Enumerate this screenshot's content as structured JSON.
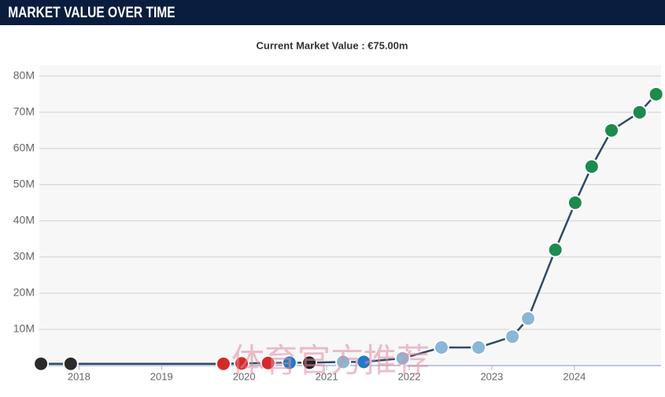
{
  "header": {
    "title": "MARKET VALUE OVER TIME"
  },
  "chart_data": {
    "type": "line",
    "subtitle": "Current Market Value : €75.00m",
    "x": [
      2017.54,
      2017.9,
      2019.75,
      2019.97,
      2020.29,
      2020.55,
      2020.79,
      2021.2,
      2021.45,
      2021.92,
      2022.39,
      2022.84,
      2023.25,
      2023.44,
      2023.77,
      2024.01,
      2024.21,
      2024.45,
      2024.79,
      2024.99
    ],
    "series": [
      {
        "color": "#2f4a66",
        "values": [
          0.5,
          0.5,
          0.5,
          0.6,
          0.7,
          0.8,
          0.8,
          1,
          1,
          2,
          5,
          5,
          8,
          13,
          32,
          45,
          55,
          65,
          70,
          75
        ],
        "marker_colors": [
          "#2b2b2b",
          "#2b2b2b",
          "#d62a2a",
          "#d62a2a",
          "#d62a2a",
          "#1f7ac8",
          "#222222",
          "#8ab6d8",
          "#1f7ac8",
          "#8ab6d8",
          "#8ab6d8",
          "#8ab6d8",
          "#8ab6d8",
          "#8ab6d8",
          "#1d8a4e",
          "#1d8a4e",
          "#1d8a4e",
          "#1d8a4e",
          "#1d8a4e",
          "#1d8a4e"
        ]
      }
    ],
    "xlim": [
      2017.52,
      2025.05
    ],
    "xticks": [
      2018,
      2019,
      2020,
      2021,
      2022,
      2023,
      2024
    ],
    "ylim": [
      0,
      83
    ],
    "yticks": [
      {
        "value": 10,
        "label": "10M"
      },
      {
        "value": 20,
        "label": "20M"
      },
      {
        "value": 30,
        "label": "30M"
      },
      {
        "value": 40,
        "label": "40M"
      },
      {
        "value": 50,
        "label": "50M"
      },
      {
        "value": 60,
        "label": "60M"
      },
      {
        "value": 70,
        "label": "70M"
      },
      {
        "value": 80,
        "label": "80M"
      }
    ],
    "grid": true,
    "watermark": "体育官方推荐"
  }
}
